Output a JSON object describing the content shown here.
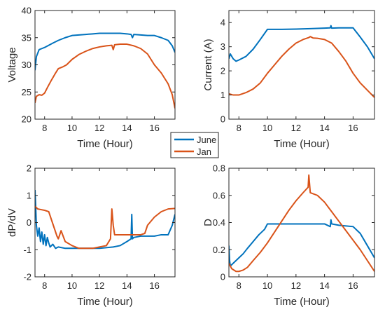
{
  "legend": {
    "entries": [
      {
        "name": "June",
        "color": "#0072BD"
      },
      {
        "name": "Jan",
        "color": "#D95319"
      }
    ],
    "placement": "center"
  },
  "chart_data": [
    {
      "type": "line",
      "xlabel": "Time (Hour)",
      "ylabel": "Voltage",
      "xlim": [
        7.3,
        17.5
      ],
      "ylim": [
        20,
        40
      ],
      "xticks": [
        8,
        10,
        12,
        14,
        16
      ],
      "yticks": [
        20,
        25,
        30,
        35,
        40
      ],
      "xtick_labels": [
        "8",
        "10",
        "12",
        "14",
        "16"
      ],
      "ytick_labels": [
        "20",
        "25",
        "30",
        "35",
        "40"
      ],
      "series": [
        {
          "name": "June",
          "color": "#0072BD",
          "x": [
            7.3,
            7.4,
            7.6,
            7.8,
            8.0,
            8.3,
            8.6,
            9.0,
            9.5,
            10.0,
            10.5,
            11.0,
            11.5,
            12.0,
            12.5,
            13.0,
            13.5,
            14.0,
            14.3,
            14.4,
            14.5,
            15.0,
            15.5,
            16.0,
            16.5,
            17.0,
            17.3,
            17.5
          ],
          "y": [
            29.0,
            31.5,
            32.8,
            33.0,
            33.2,
            33.6,
            34.0,
            34.5,
            35.0,
            35.4,
            35.5,
            35.6,
            35.7,
            35.8,
            35.8,
            35.8,
            35.8,
            35.7,
            35.6,
            35.0,
            35.6,
            35.5,
            35.4,
            35.4,
            35.0,
            34.5,
            33.5,
            32.3
          ]
        },
        {
          "name": "Jan",
          "color": "#D95319",
          "x": [
            7.3,
            7.4,
            7.6,
            7.8,
            8.0,
            8.2,
            8.5,
            8.8,
            9.0,
            9.3,
            9.6,
            10.0,
            10.5,
            11.0,
            11.5,
            12.0,
            12.5,
            12.9,
            13.0,
            13.1,
            13.5,
            14.0,
            14.5,
            15.0,
            15.5,
            16.0,
            16.5,
            17.0,
            17.3,
            17.5
          ],
          "y": [
            23.0,
            24.2,
            24.5,
            24.4,
            24.8,
            25.8,
            27.2,
            28.5,
            29.3,
            29.6,
            30.0,
            31.0,
            31.9,
            32.5,
            33.0,
            33.3,
            33.5,
            33.6,
            32.8,
            33.7,
            33.8,
            33.8,
            33.5,
            33.0,
            32.0,
            30.0,
            28.5,
            26.5,
            24.5,
            22.0
          ]
        }
      ]
    },
    {
      "type": "line",
      "xlabel": "Time (Hour)",
      "ylabel": "Current (A)",
      "xlim": [
        7.3,
        17.5
      ],
      "ylim": [
        0,
        4.5
      ],
      "xticks": [
        8,
        10,
        12,
        14,
        16
      ],
      "yticks": [
        0,
        1,
        2,
        3,
        4
      ],
      "xtick_labels": [
        "8",
        "10",
        "12",
        "14",
        "16"
      ],
      "ytick_labels": [
        "0",
        "1",
        "2",
        "3",
        "4"
      ],
      "series": [
        {
          "name": "June",
          "color": "#0072BD",
          "x": [
            7.3,
            7.4,
            7.6,
            7.8,
            8.0,
            8.5,
            9.0,
            9.5,
            10.0,
            11.0,
            12.0,
            13.0,
            14.0,
            14.4,
            14.45,
            14.5,
            15.0,
            16.0,
            16.5,
            17.0,
            17.5
          ],
          "y": [
            2.5,
            2.7,
            2.5,
            2.4,
            2.45,
            2.6,
            2.9,
            3.3,
            3.72,
            3.72,
            3.73,
            3.75,
            3.77,
            3.78,
            3.87,
            3.77,
            3.78,
            3.78,
            3.4,
            3.0,
            2.5
          ]
        },
        {
          "name": "Jan",
          "color": "#D95319",
          "x": [
            7.3,
            7.6,
            8.0,
            8.5,
            9.0,
            9.5,
            10.0,
            10.5,
            11.0,
            11.5,
            12.0,
            12.5,
            12.9,
            13.0,
            13.2,
            13.5,
            14.0,
            14.5,
            15.0,
            15.5,
            16.0,
            16.5,
            17.0,
            17.5
          ],
          "y": [
            1.05,
            1.0,
            1.0,
            1.1,
            1.25,
            1.5,
            1.9,
            2.25,
            2.6,
            2.9,
            3.15,
            3.3,
            3.38,
            3.42,
            3.36,
            3.35,
            3.3,
            3.15,
            2.8,
            2.4,
            1.9,
            1.5,
            1.2,
            0.9
          ]
        }
      ]
    },
    {
      "type": "line",
      "xlabel": "Time (Hour)",
      "ylabel": "dP/dV",
      "xlim": [
        7.3,
        17.5
      ],
      "ylim": [
        -2,
        2
      ],
      "xticks": [
        8,
        10,
        12,
        14,
        16
      ],
      "yticks": [
        -2,
        -1,
        0,
        1,
        2
      ],
      "xtick_labels": [
        "8",
        "10",
        "12",
        "14",
        "16"
      ],
      "ytick_labels": [
        "-2",
        "-1",
        "0",
        "1",
        "2"
      ],
      "series": [
        {
          "name": "June",
          "color": "#0072BD",
          "x": [
            7.3,
            7.35,
            7.4,
            7.5,
            7.6,
            7.7,
            7.8,
            7.9,
            8.0,
            8.1,
            8.2,
            8.3,
            8.4,
            8.6,
            8.8,
            9.0,
            9.5,
            10.0,
            11.0,
            12.0,
            13.0,
            13.5,
            14.0,
            14.3,
            14.35,
            14.4,
            14.5,
            15.0,
            16.0,
            16.5,
            17.0,
            17.3,
            17.5
          ],
          "y": [
            1.2,
            0.6,
            -0.1,
            -0.5,
            -0.2,
            -0.7,
            -0.35,
            -0.8,
            -0.45,
            -0.85,
            -0.55,
            -0.75,
            -0.9,
            -0.8,
            -0.95,
            -0.9,
            -0.95,
            -0.95,
            -0.95,
            -0.95,
            -0.9,
            -0.85,
            -0.7,
            -0.6,
            0.3,
            -0.6,
            -0.55,
            -0.5,
            -0.5,
            -0.45,
            -0.45,
            -0.1,
            0.3
          ]
        },
        {
          "name": "Jan",
          "color": "#D95319",
          "x": [
            7.3,
            7.5,
            8.0,
            8.3,
            8.5,
            8.7,
            8.9,
            9.0,
            9.2,
            9.5,
            10.0,
            10.5,
            11.0,
            11.5,
            12.0,
            12.5,
            12.8,
            12.9,
            13.0,
            13.1,
            13.5,
            14.0,
            14.5,
            15.0,
            15.3,
            15.5,
            16.0,
            16.5,
            17.0,
            17.5
          ],
          "y": [
            0.6,
            0.5,
            0.45,
            0.4,
            0.1,
            -0.2,
            -0.5,
            -0.6,
            -0.3,
            -0.7,
            -0.85,
            -0.95,
            -0.95,
            -0.95,
            -0.9,
            -0.85,
            -0.6,
            0.5,
            -0.1,
            -0.45,
            -0.45,
            -0.45,
            -0.45,
            -0.45,
            -0.4,
            -0.1,
            0.2,
            0.4,
            0.5,
            0.52
          ]
        }
      ]
    },
    {
      "type": "line",
      "xlabel": "Time (Hour)",
      "ylabel": "D",
      "xlim": [
        7.3,
        17.5
      ],
      "ylim": [
        0,
        0.8
      ],
      "xticks": [
        8,
        10,
        12,
        14,
        16
      ],
      "yticks": [
        0,
        0.2,
        0.4,
        0.6,
        0.8
      ],
      "xtick_labels": [
        "8",
        "10",
        "12",
        "14",
        "16"
      ],
      "ytick_labels": [
        "0",
        "0.2",
        "0.4",
        "0.6",
        "0.8"
      ],
      "series": [
        {
          "name": "June",
          "color": "#0072BD",
          "x": [
            7.3,
            7.35,
            7.4,
            7.6,
            7.8,
            8.0,
            8.3,
            8.6,
            9.0,
            9.4,
            9.8,
            10.0,
            11.0,
            12.0,
            13.0,
            14.0,
            14.4,
            14.45,
            14.5,
            15.0,
            16.0,
            16.5,
            17.0,
            17.5
          ],
          "y": [
            0.23,
            0.12,
            0.08,
            0.1,
            0.12,
            0.14,
            0.17,
            0.21,
            0.26,
            0.31,
            0.35,
            0.39,
            0.39,
            0.39,
            0.39,
            0.39,
            0.37,
            0.42,
            0.39,
            0.38,
            0.37,
            0.32,
            0.23,
            0.14
          ]
        },
        {
          "name": "Jan",
          "color": "#D95319",
          "x": [
            7.3,
            7.5,
            7.8,
            8.0,
            8.3,
            8.6,
            9.0,
            9.5,
            10.0,
            10.5,
            11.0,
            11.5,
            12.0,
            12.5,
            12.85,
            12.9,
            13.0,
            13.5,
            14.0,
            14.5,
            15.0,
            15.5,
            16.0,
            16.5,
            17.0,
            17.5
          ],
          "y": [
            0.1,
            0.06,
            0.04,
            0.04,
            0.05,
            0.07,
            0.12,
            0.18,
            0.25,
            0.33,
            0.41,
            0.49,
            0.56,
            0.62,
            0.66,
            0.75,
            0.62,
            0.6,
            0.55,
            0.48,
            0.41,
            0.34,
            0.27,
            0.2,
            0.12,
            0.04
          ]
        }
      ]
    }
  ]
}
